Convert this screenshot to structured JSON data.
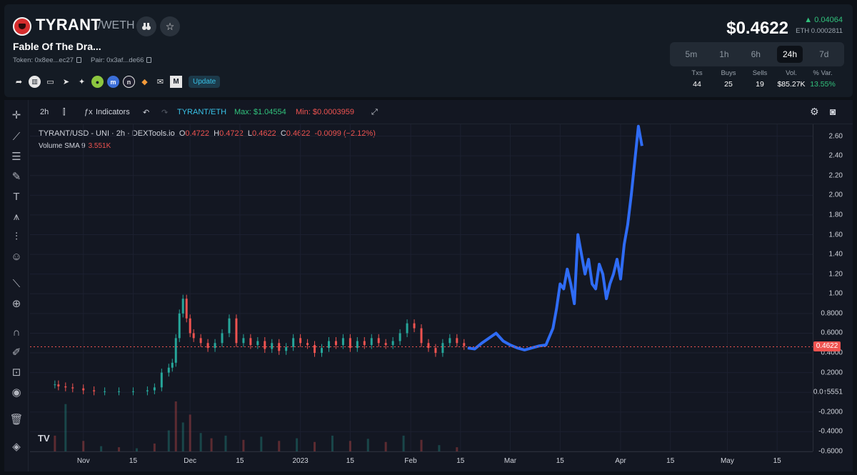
{
  "token": {
    "name": "TYRANT",
    "pair_label": "/WETH",
    "full_name": "Fable Of The Dra...",
    "token_addr": "Token: 0x8ee...ec27",
    "pair_addr": "Pair: 0x3af...de66",
    "update_label": "Update"
  },
  "price": {
    "usd": "$0.4622",
    "change": "0.04064",
    "change_arrow": "▲",
    "eth": "ETH 0.0002811"
  },
  "timeframes": [
    "5m",
    "1h",
    "6h",
    "24h",
    "7d"
  ],
  "timeframe_active": "24h",
  "stats": [
    {
      "label": "Txs",
      "value": "44"
    },
    {
      "label": "Buys",
      "value": "25"
    },
    {
      "label": "Sells",
      "value": "19"
    },
    {
      "label": "Vol.",
      "value": "$85.27K"
    },
    {
      "label": "% Var.",
      "value": "13.55%"
    }
  ],
  "chart_toolbar": {
    "interval": "2h",
    "indicators": "Indicators",
    "pair": "TYRANT/ETH",
    "max": "Max: $1.04554",
    "min": "Min: $0.0003959"
  },
  "legend": {
    "symbol": "TYRANT/USD - UNI · 2h · DEXTools.io",
    "o_label": "O",
    "o": "0.4722",
    "h_label": "H",
    "h": "0.4722",
    "l_label": "L",
    "l": "0.4622",
    "c_label": "C",
    "c": "0.4622",
    "chg": "-0.0099 (−2.12%)",
    "volume_label": "Volume SMA 9",
    "volume_value": "3.551K"
  },
  "colors": {
    "up": "#26a69a",
    "down": "#ef5350",
    "projection": "#2f6cf5",
    "accent": "#38c1e6",
    "green": "#31c27c"
  },
  "chart_data": {
    "type": "line",
    "title": "TYRANT/USD - UNI · 2h · DEXTools.io",
    "ylim": [
      -0.6,
      2.72
    ],
    "y_ticks": [
      "2.60",
      "2.40",
      "2.20",
      "2.00",
      "1.80",
      "1.60",
      "1.40",
      "1.20",
      "1.00",
      "0.8000",
      "0.6000",
      "0.4000",
      "0.2000",
      "0.0↑5551",
      "-0.2000",
      "-0.4000",
      "-0.6000"
    ],
    "y_tick_values": [
      2.6,
      2.4,
      2.2,
      2.0,
      1.8,
      1.6,
      1.4,
      1.2,
      1.0,
      0.8,
      0.6,
      0.4,
      0.2,
      0.0,
      -0.2,
      -0.4,
      -0.6
    ],
    "x_ticks": [
      "Nov",
      "15",
      "Dec",
      "15",
      "2023",
      "15",
      "Feb",
      "15",
      "Mar",
      "15",
      "Apr",
      "15",
      "May",
      "15"
    ],
    "x_tick_days": [
      0,
      14,
      30,
      44,
      61,
      75,
      92,
      106,
      120,
      134,
      151,
      165,
      181,
      195
    ],
    "last_price": 0.4622,
    "last_price_label": "0.4622",
    "series": [
      {
        "style": "candles",
        "x": [
          -8,
          -7,
          -5,
          -3,
          0,
          3,
          6,
          10,
          14,
          18,
          20,
          22,
          24,
          25,
          26,
          27,
          28,
          29,
          30,
          31,
          33,
          35,
          37,
          39,
          41,
          43,
          45,
          47,
          49,
          51,
          53,
          55,
          57,
          59,
          61,
          63,
          65,
          67,
          69,
          71,
          73,
          75,
          77,
          79,
          81,
          83,
          85,
          87,
          89,
          91,
          93,
          95,
          97,
          99,
          101,
          103,
          105,
          107
        ],
        "values": [
          0.08,
          0.06,
          0.05,
          0.04,
          0.02,
          0.01,
          0.01,
          0.01,
          0.01,
          0.02,
          0.05,
          0.2,
          0.25,
          0.3,
          0.55,
          0.8,
          0.95,
          0.75,
          0.6,
          0.55,
          0.5,
          0.45,
          0.5,
          0.6,
          0.75,
          0.5,
          0.55,
          0.48,
          0.52,
          0.44,
          0.5,
          0.42,
          0.46,
          0.55,
          0.5,
          0.48,
          0.4,
          0.45,
          0.52,
          0.48,
          0.55,
          0.45,
          0.52,
          0.48,
          0.55,
          0.5,
          0.48,
          0.52,
          0.6,
          0.7,
          0.65,
          0.5,
          0.45,
          0.4,
          0.5,
          0.55,
          0.5,
          0.47
        ]
      },
      {
        "style": "projection",
        "x": [
          108,
          110,
          112,
          114,
          116,
          118,
          120,
          122,
          124,
          126,
          128,
          130,
          132,
          133,
          134,
          135,
          136,
          137,
          138,
          139,
          140,
          141,
          142,
          143,
          144,
          145,
          146,
          147,
          148,
          149,
          150,
          151,
          152,
          153,
          154,
          155,
          156,
          157
        ],
        "values": [
          0.45,
          0.44,
          0.5,
          0.55,
          0.6,
          0.52,
          0.48,
          0.45,
          0.43,
          0.45,
          0.47,
          0.48,
          0.65,
          0.85,
          1.1,
          1.05,
          1.25,
          1.1,
          0.9,
          1.6,
          1.4,
          1.2,
          1.35,
          1.1,
          1.05,
          1.3,
          1.2,
          0.95,
          1.1,
          1.2,
          1.35,
          1.15,
          1.5,
          1.7,
          2.0,
          2.35,
          2.7,
          2.5
        ]
      },
      {
        "style": "volume",
        "x": [
          -8,
          -5,
          0,
          5,
          10,
          15,
          20,
          24,
          26,
          28,
          30,
          33,
          36,
          40,
          45,
          50,
          55,
          60,
          65,
          70,
          75,
          80,
          85,
          90,
          95,
          100,
          105
        ],
        "values": [
          30,
          90,
          20,
          10,
          8,
          6,
          15,
          40,
          95,
          55,
          70,
          35,
          25,
          30,
          22,
          28,
          20,
          25,
          18,
          30,
          20,
          24,
          18,
          30,
          22,
          12,
          8
        ]
      }
    ]
  }
}
